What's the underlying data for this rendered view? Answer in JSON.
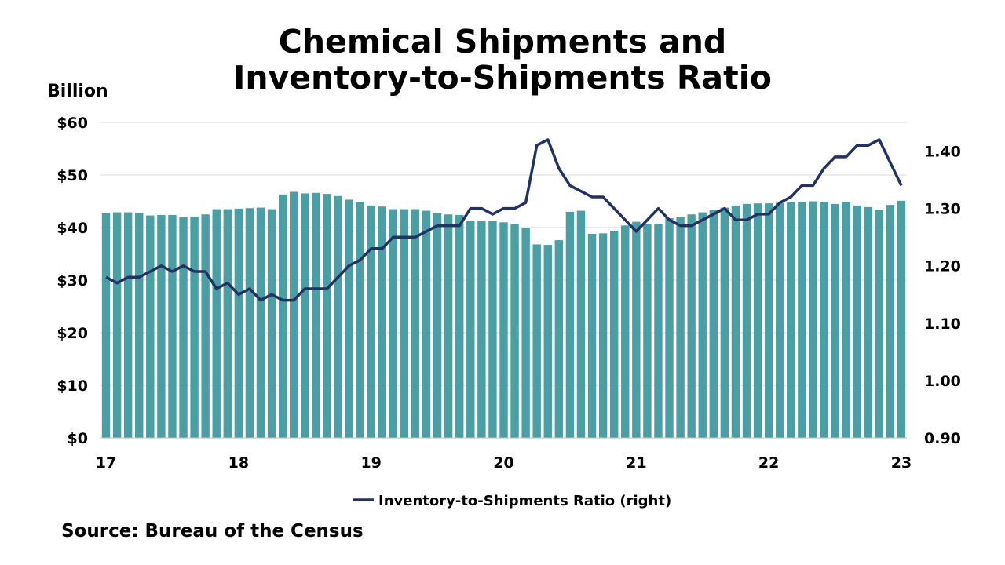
{
  "chart_data": {
    "type": "bar",
    "title": [
      "Chemical Shipments and",
      "Inventory-to-Shipments Ratio"
    ],
    "ylabel": "Billion",
    "source": "Source: Bureau of the Census",
    "x_tick_labels": [
      "17",
      "18",
      "19",
      "20",
      "21",
      "22",
      "23"
    ],
    "y_left_tick_labels": [
      "$0",
      "$10",
      "$20",
      "$30",
      "$40",
      "$50",
      "$60"
    ],
    "y_right_tick_labels": [
      "0.90",
      "1.00",
      "1.10",
      "1.20",
      "1.30",
      "1.40"
    ],
    "ylim_left": [
      0,
      60
    ],
    "ylim_right": [
      0.9,
      1.45
    ],
    "grid": "horizontal",
    "legend_position": "bottom-center",
    "bar_color": "#4a9fa5",
    "line_color": "#233264",
    "series": [
      {
        "type": "bar",
        "axis": "left",
        "values": [
          42.7,
          42.9,
          42.9,
          42.7,
          42.3,
          42.4,
          42.4,
          42.0,
          42.1,
          42.5,
          43.5,
          43.5,
          43.6,
          43.7,
          43.8,
          43.5,
          46.3,
          46.8,
          46.5,
          46.6,
          46.4,
          46.0,
          45.3,
          44.8,
          44.2,
          44.0,
          43.5,
          43.5,
          43.5,
          43.2,
          42.8,
          42.5,
          42.4,
          41.3,
          41.3,
          41.3,
          41.0,
          40.7,
          39.9,
          36.8,
          36.7,
          37.6,
          43.0,
          43.2,
          38.8,
          38.9,
          39.4,
          40.4,
          41.1,
          40.7,
          40.7,
          41.8,
          42.0,
          42.5,
          42.9,
          43.3,
          43.8,
          44.2,
          44.5,
          44.6,
          44.6,
          44.7,
          44.8,
          44.9,
          45.0,
          44.9,
          44.5,
          44.8,
          44.2,
          43.9,
          43.3,
          44.3,
          45.1
        ]
      },
      {
        "type": "line",
        "axis": "right",
        "name": "Inventory-to-Shipments Ratio (right)",
        "values": [
          1.18,
          1.17,
          1.18,
          1.18,
          1.19,
          1.2,
          1.19,
          1.2,
          1.19,
          1.19,
          1.16,
          1.17,
          1.15,
          1.16,
          1.14,
          1.15,
          1.14,
          1.14,
          1.16,
          1.16,
          1.16,
          1.18,
          1.2,
          1.21,
          1.23,
          1.23,
          1.25,
          1.25,
          1.25,
          1.26,
          1.27,
          1.27,
          1.27,
          1.3,
          1.3,
          1.29,
          1.3,
          1.3,
          1.31,
          1.41,
          1.42,
          1.37,
          1.34,
          1.33,
          1.32,
          1.32,
          1.3,
          1.28,
          1.26,
          1.28,
          1.3,
          1.28,
          1.27,
          1.27,
          1.28,
          1.29,
          1.3,
          1.28,
          1.28,
          1.29,
          1.29,
          1.31,
          1.32,
          1.34,
          1.34,
          1.37,
          1.39,
          1.39,
          1.41,
          1.41,
          1.42,
          1.38,
          1.34
        ]
      }
    ]
  }
}
